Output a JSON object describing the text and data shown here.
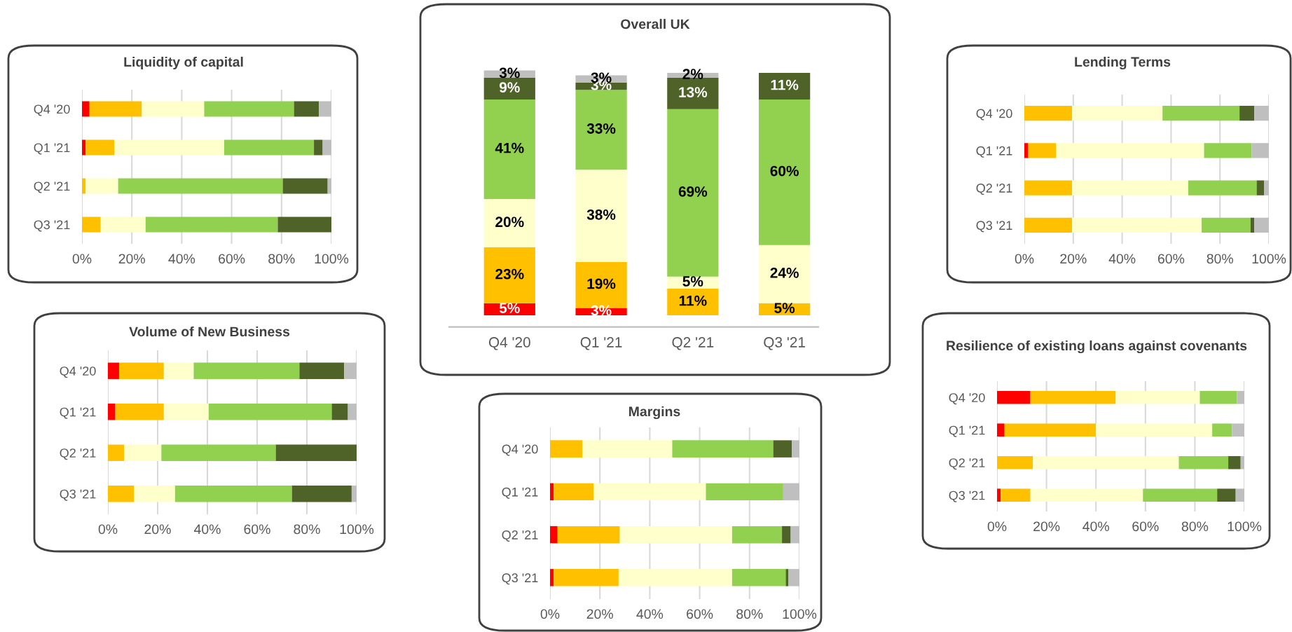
{
  "chart_data": [
    {
      "type": "bar",
      "orientation": "horizontal",
      "stacked": true,
      "title": "Liquidity of capital",
      "categories": [
        "Q4 '20",
        "Q1 '21",
        "Q2 '21",
        "Q3 '21"
      ],
      "xlim": [
        0,
        100
      ],
      "xticks": [
        {
          "value": 0,
          "label": "0%"
        },
        {
          "value": 20,
          "label": "20%"
        },
        {
          "value": 40,
          "label": "40%"
        },
        {
          "value": 60,
          "label": "60%"
        },
        {
          "value": 80,
          "label": "80%"
        },
        {
          "value": 100,
          "label": "100%"
        }
      ],
      "grid": "x",
      "series": [
        {
          "color": "#ff0000",
          "values": [
            3,
            1.5,
            0,
            0
          ]
        },
        {
          "color": "#ffc000",
          "values": [
            21,
            11.5,
            1.5,
            7.5
          ]
        },
        {
          "color": "#ffffcc",
          "values": [
            25,
            44,
            13,
            18
          ]
        },
        {
          "color": "#92d050",
          "values": [
            36,
            36,
            66,
            53
          ]
        },
        {
          "color": "#4f6228",
          "values": [
            10,
            3.5,
            18,
            21.5
          ]
        },
        {
          "color": "#bfbfbf",
          "values": [
            5,
            3.5,
            1.5,
            0
          ]
        }
      ]
    },
    {
      "type": "bar",
      "stacked": true,
      "title": "Overall UK",
      "categories": [
        "Q4 '20",
        "Q1 '21",
        "Q2 '21",
        "Q3 '21"
      ],
      "grid": false,
      "tick_labels": "x",
      "series": [
        {
          "color": "#ff0000",
          "values": [
            5,
            3,
            null,
            null
          ],
          "value_labels": [
            "5%",
            "3%",
            null,
            null
          ]
        },
        {
          "color": "#ffc000",
          "values": [
            23,
            19,
            11,
            5
          ],
          "value_labels": [
            "23%",
            "19%",
            "11%",
            "5%"
          ]
        },
        {
          "color": "#ffffcc",
          "values": [
            20,
            38,
            5,
            24
          ],
          "value_labels": [
            "20%",
            "38%",
            "5%",
            "24%"
          ]
        },
        {
          "color": "#92d050",
          "values": [
            41,
            33,
            69,
            60
          ],
          "value_labels": [
            "41%",
            "33%",
            "69%",
            "60%"
          ]
        },
        {
          "color": "#4f6228",
          "values": [
            9,
            3,
            13,
            11
          ],
          "value_labels": [
            "9%",
            "3%",
            "13%",
            "11%"
          ]
        },
        {
          "color": "#bfbfbf",
          "values": [
            3,
            3,
            2,
            null
          ],
          "value_labels": [
            "3%",
            "3%",
            "2%",
            null
          ]
        }
      ]
    },
    {
      "type": "bar",
      "orientation": "horizontal",
      "stacked": true,
      "title": "Lending Terms",
      "categories": [
        "Q4 '20",
        "Q1 '21",
        "Q2 '21",
        "Q3 '21"
      ],
      "xlim": [
        0,
        100
      ],
      "xticks": [
        {
          "value": 0,
          "label": "0%"
        },
        {
          "value": 20,
          "label": "20%"
        },
        {
          "value": 40,
          "label": "40%"
        },
        {
          "value": 60,
          "label": "60%"
        },
        {
          "value": 80,
          "label": "80%"
        },
        {
          "value": 100,
          "label": "100%"
        }
      ],
      "grid": "x",
      "series": [
        {
          "color": "#ff0000",
          "values": [
            0,
            1.5,
            0,
            0
          ]
        },
        {
          "color": "#ffc000",
          "values": [
            19.5,
            11.5,
            19.5,
            19.5
          ]
        },
        {
          "color": "#ffffcc",
          "values": [
            37,
            60.5,
            47.5,
            53
          ]
        },
        {
          "color": "#92d050",
          "values": [
            31.5,
            19.5,
            28,
            20
          ]
        },
        {
          "color": "#4f6228",
          "values": [
            6,
            0,
            3,
            1.5
          ]
        },
        {
          "color": "#bfbfbf",
          "values": [
            6,
            7,
            2,
            6
          ]
        }
      ]
    },
    {
      "type": "bar",
      "orientation": "horizontal",
      "stacked": true,
      "title": "Volume of New Business",
      "categories": [
        "Q4 '20",
        "Q1 '21",
        "Q2 '21",
        "Q3 '21"
      ],
      "xlim": [
        0,
        100
      ],
      "xticks": [
        {
          "value": 0,
          "label": "0%"
        },
        {
          "value": 20,
          "label": "20%"
        },
        {
          "value": 40,
          "label": "40%"
        },
        {
          "value": 60,
          "label": "60%"
        },
        {
          "value": 80,
          "label": "80%"
        },
        {
          "value": 100,
          "label": "100%"
        }
      ],
      "grid": "x",
      "series": [
        {
          "color": "#ff0000",
          "values": [
            4.5,
            3,
            0,
            0
          ]
        },
        {
          "color": "#ffc000",
          "values": [
            18,
            19.5,
            6.5,
            10.5
          ]
        },
        {
          "color": "#ffffcc",
          "values": [
            12,
            18,
            15,
            16.5
          ]
        },
        {
          "color": "#92d050",
          "values": [
            42.5,
            49.5,
            46,
            47
          ]
        },
        {
          "color": "#4f6228",
          "values": [
            18,
            6.5,
            32.5,
            24
          ]
        },
        {
          "color": "#bfbfbf",
          "values": [
            5,
            3.5,
            0,
            2
          ]
        }
      ]
    },
    {
      "type": "bar",
      "orientation": "horizontal",
      "stacked": true,
      "title": "Margins",
      "categories": [
        "Q4 '20",
        "Q1 '21",
        "Q2 '21",
        "Q3 '21"
      ],
      "xlim": [
        0,
        100
      ],
      "xticks": [
        {
          "value": 0,
          "label": "0%"
        },
        {
          "value": 20,
          "label": "20%"
        },
        {
          "value": 40,
          "label": "40%"
        },
        {
          "value": 60,
          "label": "60%"
        },
        {
          "value": 80,
          "label": "80%"
        },
        {
          "value": 100,
          "label": "100%"
        }
      ],
      "grid": "x",
      "series": [
        {
          "color": "#ff0000",
          "values": [
            0,
            1.5,
            3,
            1.5
          ]
        },
        {
          "color": "#ffc000",
          "values": [
            13,
            16,
            25,
            26
          ]
        },
        {
          "color": "#ffffcc",
          "values": [
            36,
            45,
            45,
            45.5
          ]
        },
        {
          "color": "#92d050",
          "values": [
            40.5,
            31,
            20,
            21.5
          ]
        },
        {
          "color": "#4f6228",
          "values": [
            7.5,
            0,
            3.5,
            1
          ]
        },
        {
          "color": "#bfbfbf",
          "values": [
            3,
            6.5,
            3.5,
            4.5
          ]
        }
      ]
    },
    {
      "type": "bar",
      "orientation": "horizontal",
      "stacked": true,
      "title": "Resilience of existing loans against covenants",
      "categories": [
        "Q4 '20",
        "Q1 '21",
        "Q2 '21",
        "Q3 '21"
      ],
      "xlim": [
        0,
        100
      ],
      "xticks": [
        {
          "value": 0,
          "label": "0%"
        },
        {
          "value": 20,
          "label": "20%"
        },
        {
          "value": 40,
          "label": "40%"
        },
        {
          "value": 60,
          "label": "60%"
        },
        {
          "value": 80,
          "label": "80%"
        },
        {
          "value": 100,
          "label": "100%"
        }
      ],
      "grid": "x",
      "series": [
        {
          "color": "#ff0000",
          "values": [
            13.5,
            3,
            0,
            1.5
          ]
        },
        {
          "color": "#ffc000",
          "values": [
            34.5,
            37,
            14.5,
            12
          ]
        },
        {
          "color": "#ffffcc",
          "values": [
            34,
            47,
            59,
            45.5
          ]
        },
        {
          "color": "#92d050",
          "values": [
            15,
            8,
            20,
            30
          ]
        },
        {
          "color": "#4f6228",
          "values": [
            0,
            0,
            5,
            7.5
          ]
        },
        {
          "color": "#bfbfbf",
          "values": [
            3,
            5,
            1.5,
            3.5
          ]
        }
      ]
    }
  ]
}
